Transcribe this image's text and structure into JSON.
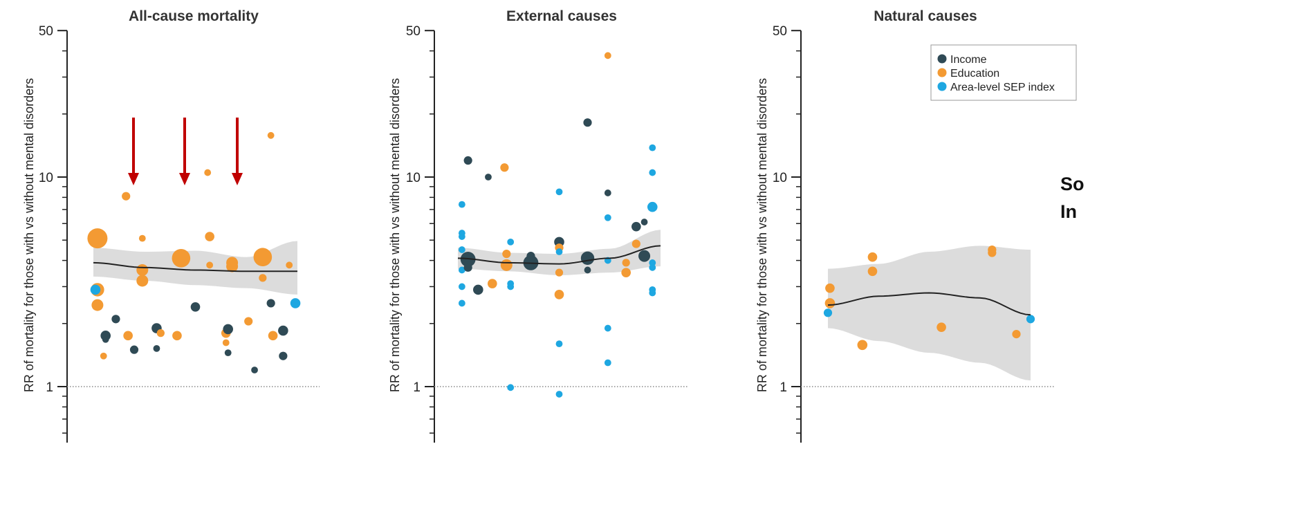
{
  "colors": {
    "Income": "#2f4a55",
    "Education": "#f39a33",
    "Area-level SEP index": "#1ea7e1",
    "band": "#dcdcdc",
    "arrow": "#c00000"
  },
  "legend": {
    "items": [
      "Income",
      "Education",
      "Area-level SEP index"
    ],
    "placement": "top-right"
  },
  "side_text": [
    "So",
    "In"
  ],
  "chart_data": [
    {
      "type": "scatter",
      "title": "All-cause mortality",
      "ylabel": "RR of mortality for those with vs without mental disorders",
      "yscale": "log",
      "ylim": [
        0.6,
        50
      ],
      "yticks": [
        1,
        10,
        50
      ],
      "reference_line": 1,
      "annotations": [
        "arrow",
        "arrow",
        "arrow"
      ],
      "fit": [
        [
          0.0,
          3.9
        ],
        [
          0.25,
          3.7
        ],
        [
          0.5,
          3.6
        ],
        [
          0.75,
          3.55
        ],
        [
          1.0,
          3.55
        ]
      ],
      "ci_upper": [
        [
          0.0,
          4.6
        ],
        [
          0.25,
          4.4
        ],
        [
          0.5,
          4.45
        ],
        [
          0.75,
          4.15
        ],
        [
          1.0,
          4.95
        ]
      ],
      "ci_lower": [
        [
          0.0,
          3.35
        ],
        [
          0.25,
          3.2
        ],
        [
          0.5,
          3.05
        ],
        [
          0.75,
          2.95
        ],
        [
          1.0,
          2.75
        ]
      ],
      "points": [
        {
          "series": "Education",
          "x": 0.02,
          "y": 5.1,
          "w": 5
        },
        {
          "series": "Education",
          "x": 0.02,
          "y": 2.9,
          "w": 3
        },
        {
          "series": "Education",
          "x": 0.02,
          "y": 2.45,
          "w": 2.5
        },
        {
          "series": "Area-level SEP index",
          "x": 0.01,
          "y": 2.9,
          "w": 2
        },
        {
          "series": "Education",
          "x": 0.05,
          "y": 1.4,
          "w": 1
        },
        {
          "series": "Income",
          "x": 0.06,
          "y": 1.75,
          "w": 2
        },
        {
          "series": "Income",
          "x": 0.06,
          "y": 1.68,
          "w": 1
        },
        {
          "series": "Income",
          "x": 0.11,
          "y": 2.1,
          "w": 1.5
        },
        {
          "series": "Education",
          "x": 0.16,
          "y": 8.1,
          "w": 1.5
        },
        {
          "series": "Education",
          "x": 0.17,
          "y": 1.75,
          "w": 1.8
        },
        {
          "series": "Income",
          "x": 0.2,
          "y": 1.5,
          "w": 1.5
        },
        {
          "series": "Education",
          "x": 0.24,
          "y": 5.1,
          "w": 1
        },
        {
          "series": "Education",
          "x": 0.24,
          "y": 3.6,
          "w": 2.5
        },
        {
          "series": "Education",
          "x": 0.24,
          "y": 3.2,
          "w": 2.5
        },
        {
          "series": "Income",
          "x": 0.31,
          "y": 1.9,
          "w": 2
        },
        {
          "series": "Income",
          "x": 0.31,
          "y": 1.52,
          "w": 1
        },
        {
          "series": "Education",
          "x": 0.33,
          "y": 1.8,
          "w": 1.3
        },
        {
          "series": "Education",
          "x": 0.43,
          "y": 4.1,
          "w": 4.5
        },
        {
          "series": "Education",
          "x": 0.41,
          "y": 1.75,
          "w": 1.8
        },
        {
          "series": "Income",
          "x": 0.5,
          "y": 2.4,
          "w": 1.8
        },
        {
          "series": "Education",
          "x": 0.56,
          "y": 10.5,
          "w": 1
        },
        {
          "series": "Education",
          "x": 0.57,
          "y": 5.2,
          "w": 1.8
        },
        {
          "series": "Education",
          "x": 0.57,
          "y": 3.8,
          "w": 1
        },
        {
          "series": "Education",
          "x": 0.65,
          "y": 1.8,
          "w": 1.8
        },
        {
          "series": "Education",
          "x": 0.65,
          "y": 1.62,
          "w": 1
        },
        {
          "series": "Income",
          "x": 0.66,
          "y": 1.88,
          "w": 2
        },
        {
          "series": "Income",
          "x": 0.66,
          "y": 1.45,
          "w": 1
        },
        {
          "series": "Education",
          "x": 0.68,
          "y": 3.9,
          "w": 2.5
        },
        {
          "series": "Education",
          "x": 0.68,
          "y": 3.75,
          "w": 2.5
        },
        {
          "series": "Education",
          "x": 0.76,
          "y": 2.05,
          "w": 1.5
        },
        {
          "series": "Income",
          "x": 0.79,
          "y": 1.2,
          "w": 1
        },
        {
          "series": "Education",
          "x": 0.83,
          "y": 4.15,
          "w": 4.5
        },
        {
          "series": "Education",
          "x": 0.83,
          "y": 3.3,
          "w": 1.3
        },
        {
          "series": "Education",
          "x": 0.87,
          "y": 15.8,
          "w": 1
        },
        {
          "series": "Income",
          "x": 0.87,
          "y": 2.5,
          "w": 1.5
        },
        {
          "series": "Education",
          "x": 0.88,
          "y": 1.75,
          "w": 1.8
        },
        {
          "series": "Income",
          "x": 0.93,
          "y": 1.85,
          "w": 2
        },
        {
          "series": "Income",
          "x": 0.93,
          "y": 1.4,
          "w": 1.5
        },
        {
          "series": "Education",
          "x": 0.96,
          "y": 3.8,
          "w": 1
        },
        {
          "series": "Area-level SEP index",
          "x": 0.99,
          "y": 2.5,
          "w": 2
        }
      ]
    },
    {
      "type": "scatter",
      "title": "External causes",
      "ylabel": "RR of mortality for those with vs without mental disorders",
      "yscale": "log",
      "ylim": [
        0.6,
        50
      ],
      "yticks": [
        1,
        10,
        50
      ],
      "reference_line": 1,
      "fit": [
        [
          0.0,
          4.1
        ],
        [
          0.25,
          3.9
        ],
        [
          0.5,
          3.85
        ],
        [
          0.75,
          4.1
        ],
        [
          1.0,
          4.7
        ]
      ],
      "ci_upper": [
        [
          0.0,
          4.6
        ],
        [
          0.25,
          4.35
        ],
        [
          0.5,
          4.3
        ],
        [
          0.75,
          4.55
        ],
        [
          1.0,
          5.6
        ]
      ],
      "ci_lower": [
        [
          0.0,
          3.65
        ],
        [
          0.25,
          3.55
        ],
        [
          0.5,
          3.4
        ],
        [
          0.75,
          3.5
        ],
        [
          1.0,
          3.75
        ]
      ],
      "points": [
        {
          "series": "Area-level SEP index",
          "x": 0.02,
          "y": 7.4,
          "w": 1
        },
        {
          "series": "Area-level SEP index",
          "x": 0.02,
          "y": 5.4,
          "w": 1
        },
        {
          "series": "Area-level SEP index",
          "x": 0.02,
          "y": 5.2,
          "w": 1
        },
        {
          "series": "Area-level SEP index",
          "x": 0.02,
          "y": 4.5,
          "w": 1
        },
        {
          "series": "Area-level SEP index",
          "x": 0.02,
          "y": 3.6,
          "w": 1
        },
        {
          "series": "Area-level SEP index",
          "x": 0.02,
          "y": 3.0,
          "w": 1
        },
        {
          "series": "Area-level SEP index",
          "x": 0.02,
          "y": 2.5,
          "w": 1
        },
        {
          "series": "Income",
          "x": 0.05,
          "y": 12,
          "w": 1.5
        },
        {
          "series": "Income",
          "x": 0.05,
          "y": 4.05,
          "w": 3.5
        },
        {
          "series": "Income",
          "x": 0.05,
          "y": 3.7,
          "w": 1.5
        },
        {
          "series": "Income",
          "x": 0.1,
          "y": 2.9,
          "w": 2
        },
        {
          "series": "Income",
          "x": 0.15,
          "y": 10,
          "w": 1
        },
        {
          "series": "Education",
          "x": 0.17,
          "y": 3.1,
          "w": 1.8
        },
        {
          "series": "Education",
          "x": 0.23,
          "y": 11.1,
          "w": 1.5
        },
        {
          "series": "Education",
          "x": 0.24,
          "y": 4.3,
          "w": 1.5
        },
        {
          "series": "Education",
          "x": 0.24,
          "y": 3.8,
          "w": 2.5
        },
        {
          "series": "Area-level SEP index",
          "x": 0.26,
          "y": 4.9,
          "w": 1
        },
        {
          "series": "Area-level SEP index",
          "x": 0.26,
          "y": 3.1,
          "w": 1
        },
        {
          "series": "Area-level SEP index",
          "x": 0.26,
          "y": 3.0,
          "w": 1
        },
        {
          "series": "Area-level SEP index",
          "x": 0.26,
          "y": 0.99,
          "w": 1
        },
        {
          "series": "Income",
          "x": 0.36,
          "y": 3.9,
          "w": 3.5
        },
        {
          "series": "Income",
          "x": 0.36,
          "y": 4.2,
          "w": 1.5
        },
        {
          "series": "Area-level SEP index",
          "x": 0.5,
          "y": 8.5,
          "w": 1
        },
        {
          "series": "Income",
          "x": 0.5,
          "y": 4.9,
          "w": 2
        },
        {
          "series": "Education",
          "x": 0.5,
          "y": 4.6,
          "w": 1.5
        },
        {
          "series": "Area-level SEP index",
          "x": 0.5,
          "y": 4.4,
          "w": 1
        },
        {
          "series": "Education",
          "x": 0.5,
          "y": 3.5,
          "w": 1.3
        },
        {
          "series": "Education",
          "x": 0.5,
          "y": 2.75,
          "w": 1.8
        },
        {
          "series": "Area-level SEP index",
          "x": 0.5,
          "y": 1.6,
          "w": 1
        },
        {
          "series": "Area-level SEP index",
          "x": 0.5,
          "y": 0.92,
          "w": 1
        },
        {
          "series": "Income",
          "x": 0.64,
          "y": 18.2,
          "w": 1.5
        },
        {
          "series": "Income",
          "x": 0.64,
          "y": 4.1,
          "w": 3
        },
        {
          "series": "Income",
          "x": 0.64,
          "y": 3.6,
          "w": 1
        },
        {
          "series": "Education",
          "x": 0.74,
          "y": 38,
          "w": 1
        },
        {
          "series": "Income",
          "x": 0.74,
          "y": 8.4,
          "w": 1
        },
        {
          "series": "Area-level SEP index",
          "x": 0.74,
          "y": 6.4,
          "w": 1
        },
        {
          "series": "Area-level SEP index",
          "x": 0.74,
          "y": 4.0,
          "w": 1
        },
        {
          "series": "Area-level SEP index",
          "x": 0.74,
          "y": 1.9,
          "w": 1
        },
        {
          "series": "Area-level SEP index",
          "x": 0.74,
          "y": 1.3,
          "w": 1
        },
        {
          "series": "Education",
          "x": 0.83,
          "y": 3.9,
          "w": 1.3
        },
        {
          "series": "Education",
          "x": 0.83,
          "y": 3.5,
          "w": 1.8
        },
        {
          "series": "Income",
          "x": 0.88,
          "y": 5.8,
          "w": 1.8
        },
        {
          "series": "Education",
          "x": 0.88,
          "y": 4.8,
          "w": 1.5
        },
        {
          "series": "Income",
          "x": 0.92,
          "y": 6.1,
          "w": 1
        },
        {
          "series": "Income",
          "x": 0.92,
          "y": 4.2,
          "w": 2.5
        },
        {
          "series": "Area-level SEP index",
          "x": 0.96,
          "y": 13.8,
          "w": 1
        },
        {
          "series": "Area-level SEP index",
          "x": 0.96,
          "y": 10.5,
          "w": 1
        },
        {
          "series": "Area-level SEP index",
          "x": 0.96,
          "y": 7.2,
          "w": 2
        },
        {
          "series": "Area-level SEP index",
          "x": 0.96,
          "y": 3.9,
          "w": 1
        },
        {
          "series": "Area-level SEP index",
          "x": 0.96,
          "y": 3.7,
          "w": 1
        },
        {
          "series": "Area-level SEP index",
          "x": 0.96,
          "y": 2.9,
          "w": 1
        },
        {
          "series": "Area-level SEP index",
          "x": 0.96,
          "y": 2.8,
          "w": 1
        }
      ]
    },
    {
      "type": "scatter",
      "title": "Natural causes",
      "ylabel": "RR of mortality for those with vs without mental disorders",
      "yscale": "log",
      "ylim": [
        0.6,
        50
      ],
      "yticks": [
        1,
        10,
        50
      ],
      "reference_line": 1,
      "fit": [
        [
          0.0,
          2.45
        ],
        [
          0.25,
          2.7
        ],
        [
          0.5,
          2.8
        ],
        [
          0.75,
          2.65
        ],
        [
          1.0,
          2.2
        ]
      ],
      "ci_upper": [
        [
          0.0,
          3.65
        ],
        [
          0.25,
          3.85
        ],
        [
          0.5,
          4.4
        ],
        [
          0.75,
          4.7
        ],
        [
          1.0,
          4.5
        ]
      ],
      "ci_lower": [
        [
          0.0,
          1.9
        ],
        [
          0.25,
          1.65
        ],
        [
          0.5,
          1.45
        ],
        [
          0.75,
          1.3
        ],
        [
          1.0,
          1.07
        ]
      ],
      "points": [
        {
          "series": "Area-level SEP index",
          "x": 0.0,
          "y": 2.25,
          "w": 1.5
        },
        {
          "series": "Education",
          "x": 0.01,
          "y": 2.95,
          "w": 1.8
        },
        {
          "series": "Education",
          "x": 0.01,
          "y": 2.5,
          "w": 2
        },
        {
          "series": "Education",
          "x": 0.17,
          "y": 1.58,
          "w": 2
        },
        {
          "series": "Education",
          "x": 0.22,
          "y": 4.15,
          "w": 1.8
        },
        {
          "series": "Education",
          "x": 0.22,
          "y": 3.55,
          "w": 1.8
        },
        {
          "series": "Education",
          "x": 0.56,
          "y": 1.92,
          "w": 1.8
        },
        {
          "series": "Education",
          "x": 0.81,
          "y": 4.5,
          "w": 1.5
        },
        {
          "series": "Education",
          "x": 0.81,
          "y": 4.35,
          "w": 1.5
        },
        {
          "series": "Education",
          "x": 0.93,
          "y": 1.78,
          "w": 1.5
        },
        {
          "series": "Area-level SEP index",
          "x": 1.0,
          "y": 2.1,
          "w": 1.5
        }
      ]
    }
  ]
}
